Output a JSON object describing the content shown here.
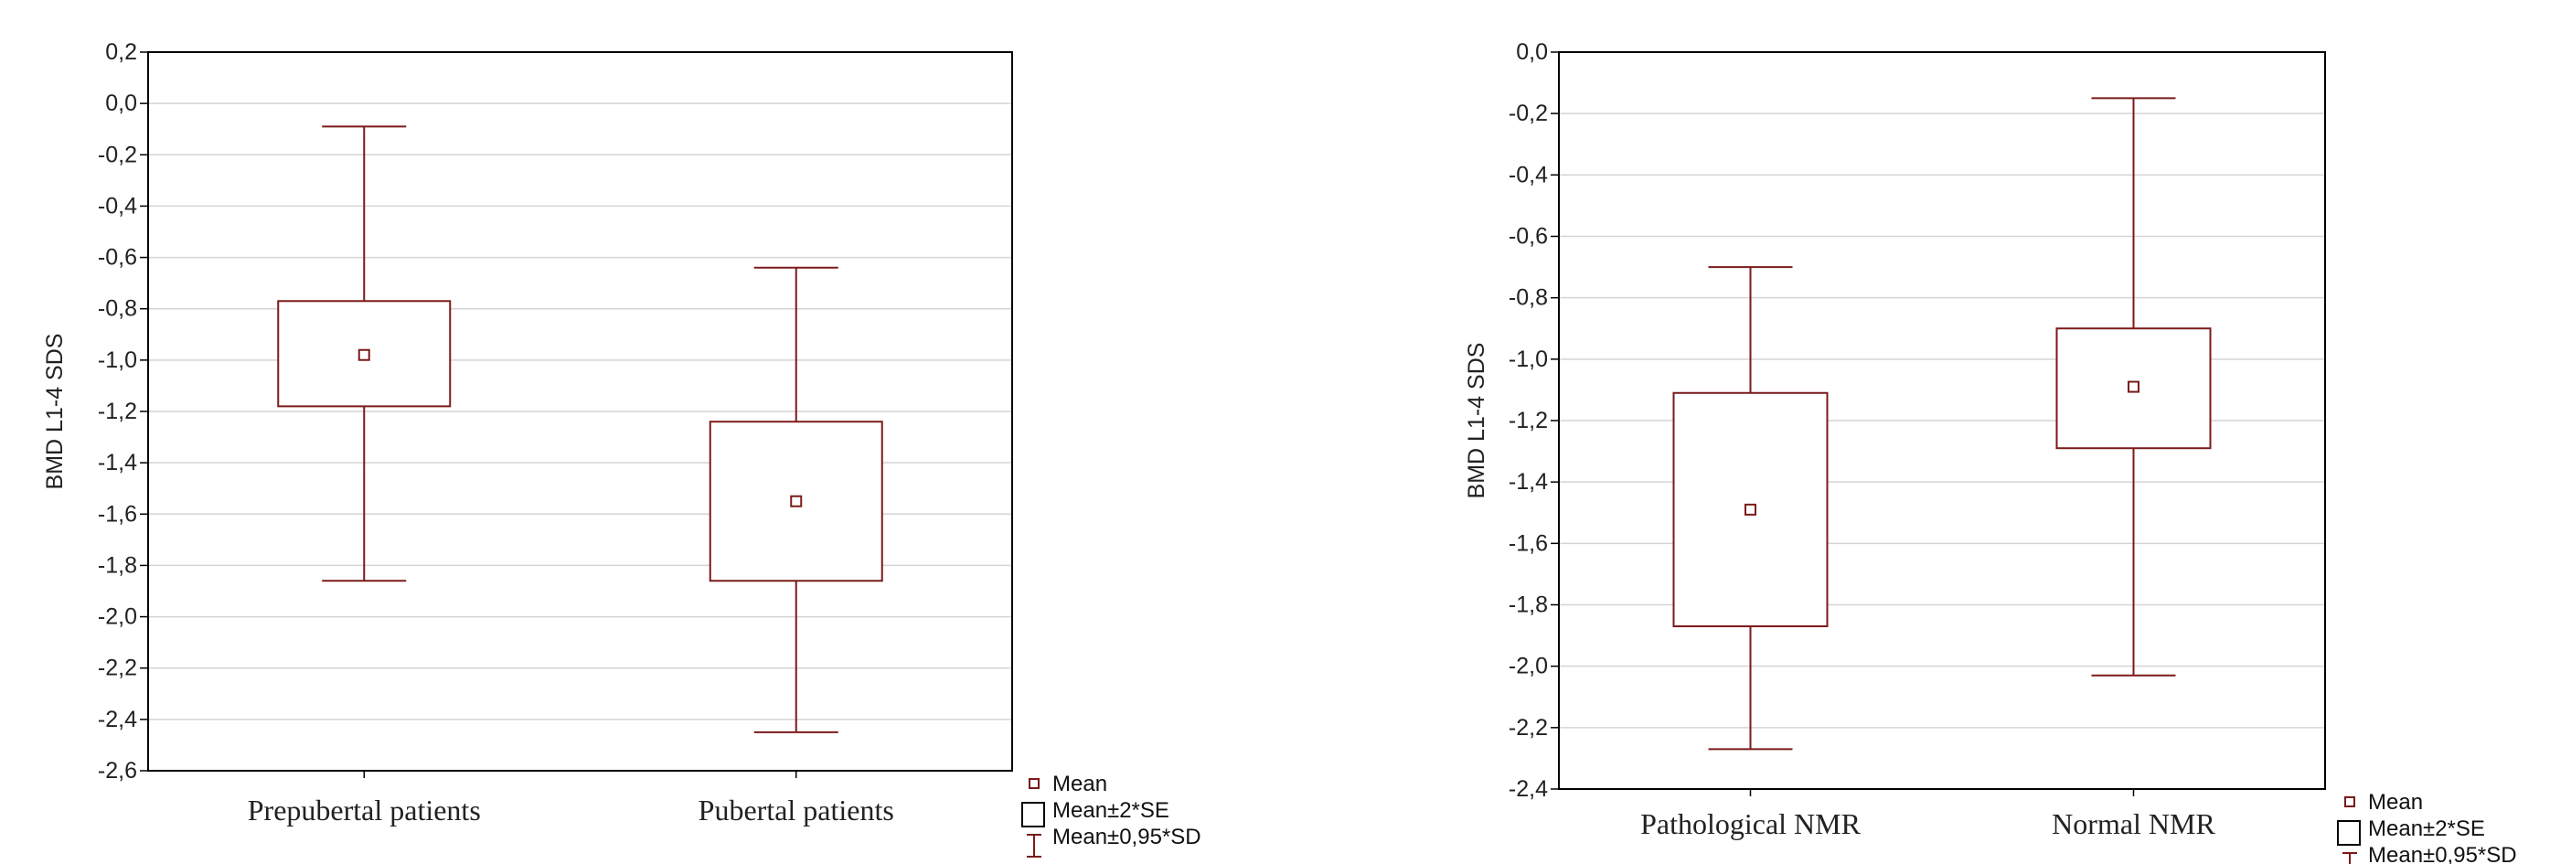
{
  "chart_data": [
    {
      "type": "boxplot",
      "title": "",
      "xlabel": "",
      "ylabel": "BMD L1-4  SDS",
      "ylim": [
        -2.6,
        0.2
      ],
      "yticks": [
        0.2,
        0.0,
        -0.2,
        -0.4,
        -0.6,
        -0.8,
        -1.0,
        -1.2,
        -1.4,
        -1.6,
        -1.8,
        -2.0,
        -2.2,
        -2.4,
        -2.6
      ],
      "ytick_labels": [
        "0,2",
        "0,0",
        "-0,2",
        "-0,4",
        "-0,6",
        "-0,8",
        "-1,0",
        "-1,2",
        "-1,4",
        "-1,6",
        "-1,8",
        "-2,0",
        "-2,2",
        "-2,4",
        "-2,6"
      ],
      "grid": true,
      "categories": [
        "Prepubertal patients",
        "Pubertal patients"
      ],
      "mean": [
        -0.98,
        -1.55
      ],
      "box_low": [
        -1.18,
        -1.86
      ],
      "box_high": [
        -0.77,
        -1.24
      ],
      "whisker_low": [
        -1.86,
        -2.45
      ],
      "whisker_high": [
        -0.09,
        -0.64
      ],
      "legend": [
        "Mean",
        "Mean±2*SE",
        "Mean±0,95*SD"
      ],
      "legend_position": "bottom-right",
      "color": "#7b1a1a"
    },
    {
      "type": "boxplot",
      "title": "",
      "xlabel": "",
      "ylabel": "BMD L1-4  SDS",
      "ylim": [
        -2.4,
        0.0
      ],
      "yticks": [
        0.0,
        -0.2,
        -0.4,
        -0.6,
        -0.8,
        -1.0,
        -1.2,
        -1.4,
        -1.6,
        -1.8,
        -2.0,
        -2.2,
        -2.4
      ],
      "ytick_labels": [
        "0,0",
        "-0,2",
        "-0,4",
        "-0,6",
        "-0,8",
        "-1,0",
        "-1,2",
        "-1,4",
        "-1,6",
        "-1,8",
        "-2,0",
        "-2,2",
        "-2,4"
      ],
      "grid": true,
      "categories": [
        "Pathological NMR",
        "Normal NMR"
      ],
      "mean": [
        -1.49,
        -1.09
      ],
      "box_low": [
        -1.87,
        -1.29
      ],
      "box_high": [
        -1.11,
        -0.9
      ],
      "whisker_low": [
        -2.27,
        -2.03
      ],
      "whisker_high": [
        -0.7,
        -0.15
      ],
      "legend": [
        "Mean",
        "Mean±2*SE",
        "Mean±0,95*SD"
      ],
      "legend_position": "bottom-right",
      "color": "#7b1a1a"
    }
  ]
}
